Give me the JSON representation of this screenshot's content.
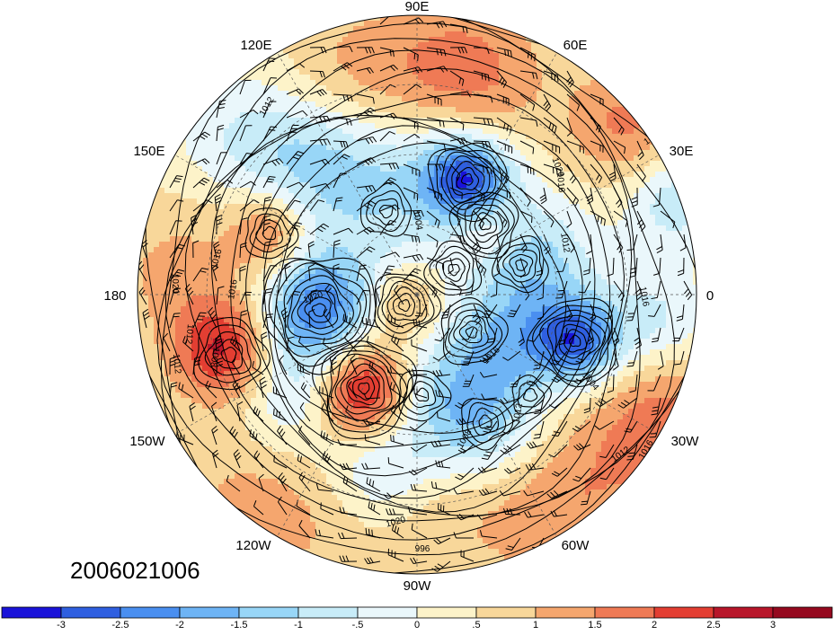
{
  "title": "",
  "date_label": "2006021006",
  "longitude_labels": [
    {
      "text": "90E",
      "pos": "top"
    },
    {
      "text": "60E",
      "pos": "top-right"
    },
    {
      "text": "30E",
      "pos": "right-upper"
    },
    {
      "text": "0",
      "pos": "right"
    },
    {
      "text": "30W",
      "pos": "right-lower"
    },
    {
      "text": "60W",
      "pos": "bottom-right"
    },
    {
      "text": "90W",
      "pos": "bottom"
    },
    {
      "text": "120W",
      "pos": "bottom-left"
    },
    {
      "text": "150W",
      "pos": "left-lower"
    },
    {
      "text": "180",
      "pos": "left"
    },
    {
      "text": "150E",
      "pos": "left-upper"
    },
    {
      "text": "120E",
      "pos": "top-left"
    }
  ],
  "contour_labels": [
    "1008",
    "1012",
    "1016",
    "1020",
    "1004",
    "1012",
    "1016",
    "1020",
    "1016",
    "1012",
    "1008",
    "1012",
    "1016",
    "1020",
    "1016",
    "1012",
    "1008",
    "1004",
    "1012",
    "1016",
    "1020",
    "1016",
    "996"
  ],
  "colorbar": {
    "ticks": [
      "-3",
      "-2.5",
      "-2",
      "-1.5",
      "-1",
      "-.5",
      "0",
      ".5",
      "1",
      "1.5",
      "2",
      "2.5",
      "3"
    ],
    "colors": [
      "#1a13d9",
      "#2f5fe0",
      "#4a8ff0",
      "#6eb4f5",
      "#98d6f7",
      "#c8ecf8",
      "#eaf7fb",
      "#fdf3c9",
      "#f8d79a",
      "#f5a66e",
      "#ef7a55",
      "#e33e32",
      "#b8162a",
      "#95091f"
    ]
  },
  "projection": "north-polar-stereographic",
  "map_layers": [
    "shaded anomaly",
    "sea-level pressure contours",
    "wind barbs",
    "coastlines"
  ]
}
